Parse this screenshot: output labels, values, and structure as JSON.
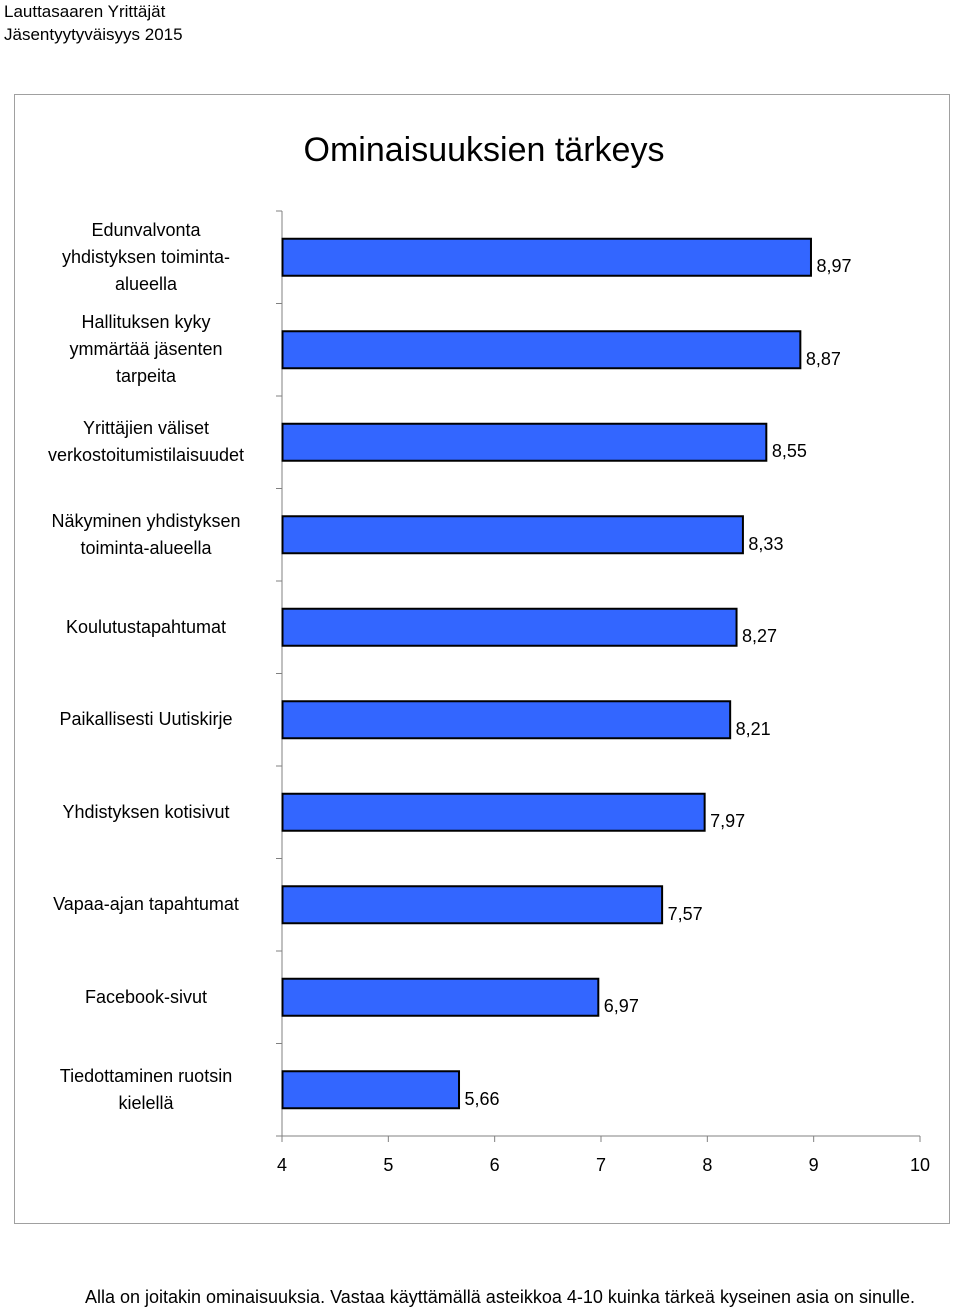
{
  "header": {
    "line1": "Lauttasaaren Yrittäjät",
    "line2": "Jäsentyytyväisyys 2015"
  },
  "footnote": "Alla on joitakin ominaisuuksia. Vastaa käyttämällä asteikkoa 4-10 kuinka tärkeä kyseinen asia on sinulle.",
  "colors": {
    "bar_fill": "#3366ff",
    "bar_stroke": "#000000",
    "frame": "#a0a0a0",
    "axis": "#808080"
  },
  "chart_data": {
    "type": "bar",
    "orientation": "horizontal",
    "title": "Ominaisuuksien tärkeys",
    "xlim": [
      4,
      10
    ],
    "ticks": [
      "4",
      "5",
      "6",
      "7",
      "8",
      "9",
      "10"
    ],
    "grid": false,
    "categories": [
      [
        "Edunvalvonta",
        "yhdistyksen toiminta-",
        "alueella"
      ],
      [
        "Hallituksen kyky",
        "ymmärtää jäsenten",
        "tarpeita"
      ],
      [
        "Yrittäjien väliset",
        "verkostoitumistilaisuudet"
      ],
      [
        "Näkyminen yhdistyksen",
        "toiminta-alueella"
      ],
      [
        "Koulutustapahtumat"
      ],
      [
        "Paikallisesti Uutiskirje"
      ],
      [
        "Yhdistyksen kotisivut"
      ],
      [
        "Vapaa-ajan tapahtumat"
      ],
      [
        "Facebook-sivut"
      ],
      [
        "Tiedottaminen ruotsin",
        "kielellä"
      ]
    ],
    "values": [
      8.97,
      8.87,
      8.55,
      8.33,
      8.27,
      8.21,
      7.97,
      7.57,
      6.97,
      5.66
    ],
    "value_labels": [
      "8,97",
      "8,87",
      "8,55",
      "8,33",
      "8,27",
      "8,21",
      "7,97",
      "7,57",
      "6,97",
      "5,66"
    ]
  }
}
